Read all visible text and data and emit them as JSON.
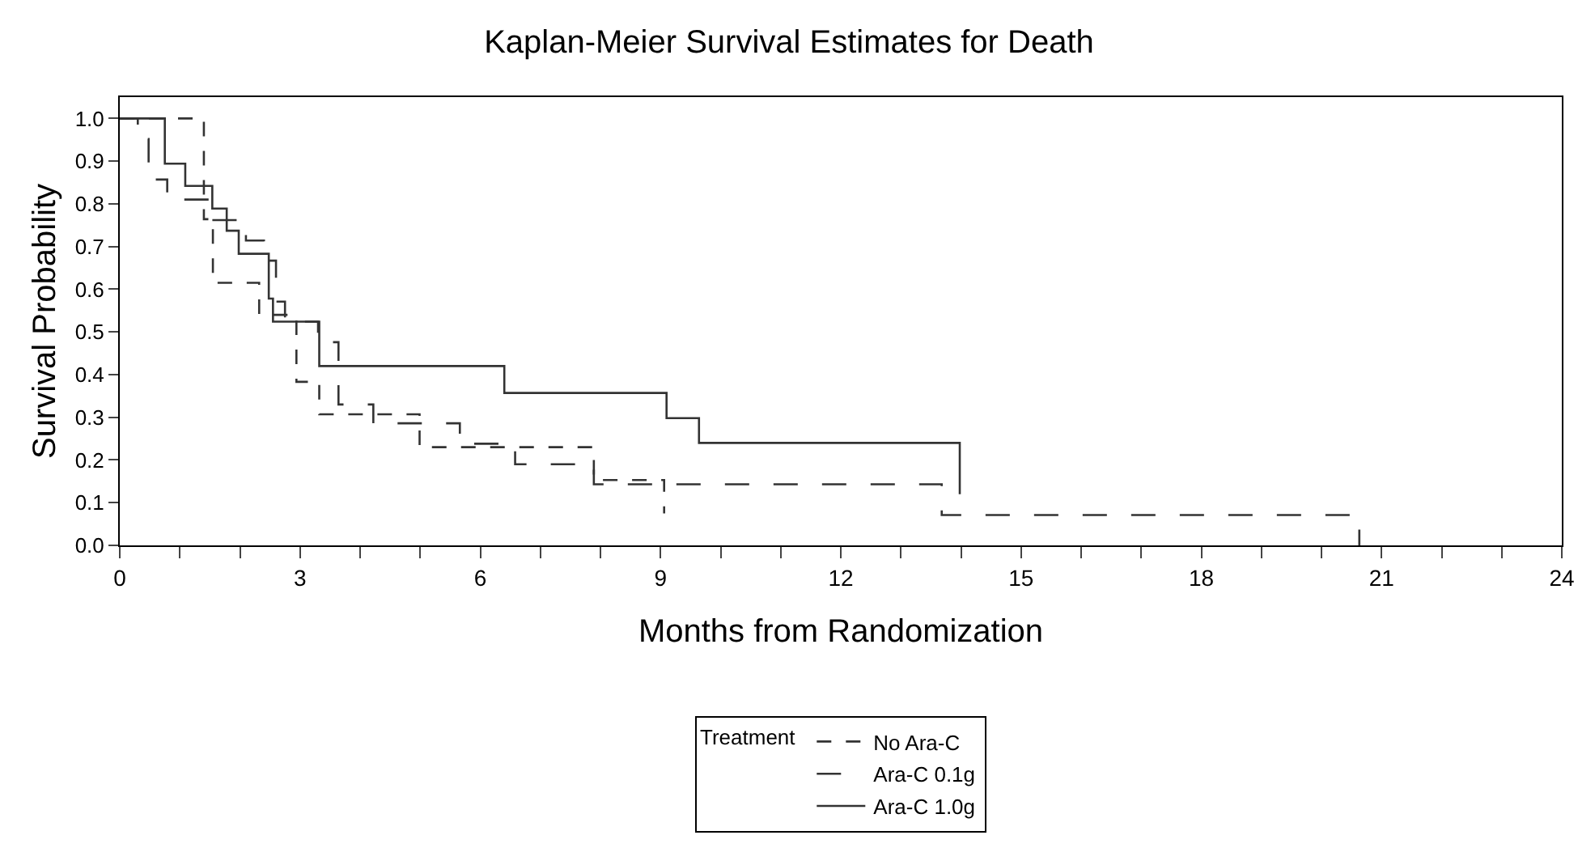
{
  "chart_data": {
    "type": "step",
    "title": "Kaplan-Meier Survival Estimates for Death",
    "xlabel": "Months from Randomization",
    "ylabel": "Survival Probability",
    "legend_title": "Treatment",
    "legend": "bottom",
    "grid": false,
    "xlim": [
      0,
      24
    ],
    "ylim": [
      0,
      1.05
    ],
    "xticks": [
      0,
      {
        "value": 1,
        "label": null
      },
      {
        "value": 2,
        "label": null
      },
      3,
      {
        "value": 4,
        "label": null
      },
      {
        "value": 5,
        "label": null
      },
      6,
      {
        "value": 7,
        "label": null
      },
      {
        "value": 8,
        "label": null
      },
      9,
      {
        "value": 10,
        "label": null
      },
      {
        "value": 11,
        "label": null
      },
      12,
      {
        "value": 13,
        "label": null
      },
      {
        "value": 14,
        "label": null
      },
      15,
      {
        "value": 16,
        "label": null
      },
      {
        "value": 17,
        "label": null
      },
      18,
      {
        "value": 19,
        "label": null
      },
      {
        "value": 20,
        "label": null
      },
      21,
      {
        "value": 22,
        "label": null
      },
      {
        "value": 23,
        "label": null
      },
      24
    ],
    "yticks": [
      {
        "value": 0,
        "label": "0.0"
      },
      0.1,
      0.2,
      0.3,
      0.4,
      0.5,
      0.6,
      0.7,
      0.8,
      0.9,
      {
        "value": 1,
        "label": "1.0"
      }
    ],
    "series": [
      {
        "name": "No Ara-C",
        "color": "#333333",
        "line_style": "dashed",
        "x": [
          0,
          1.4,
          1.55,
          2.32,
          2.94,
          3.32,
          4.99,
          7.89,
          9.06
        ],
        "values": [
          1,
          0.764,
          0.615,
          0.54,
          0.383,
          0.307,
          0.23,
          0.153,
          0.075
        ]
      },
      {
        "name": "Ara-C 0.1g",
        "color": "#333333",
        "line_style": "longdash",
        "x": [
          0,
          0.3,
          0.48,
          0.79,
          1.5,
          2.1,
          2.4,
          2.6,
          2.75,
          3.3,
          3.64,
          4.22,
          5.66,
          6.58,
          7.89,
          13.68,
          20.63
        ],
        "values": [
          1,
          0.952,
          0.857,
          0.81,
          0.762,
          0.714,
          0.667,
          0.571,
          0.524,
          0.476,
          0.33,
          0.286,
          0.238,
          0.19,
          0.143,
          0.071,
          0
        ]
      },
      {
        "name": "Ara-C 1.0g",
        "color": "#333333",
        "line_style": "solid",
        "x": [
          0,
          0.75,
          1.09,
          1.54,
          1.78,
          1.98,
          2.48,
          2.55,
          3.32,
          6.4,
          9.1,
          9.64,
          13.98
        ],
        "values": [
          1,
          0.894,
          0.842,
          0.789,
          0.737,
          0.683,
          0.578,
          0.524,
          0.42,
          0.357,
          0.298,
          0.24,
          0.12
        ]
      }
    ]
  }
}
